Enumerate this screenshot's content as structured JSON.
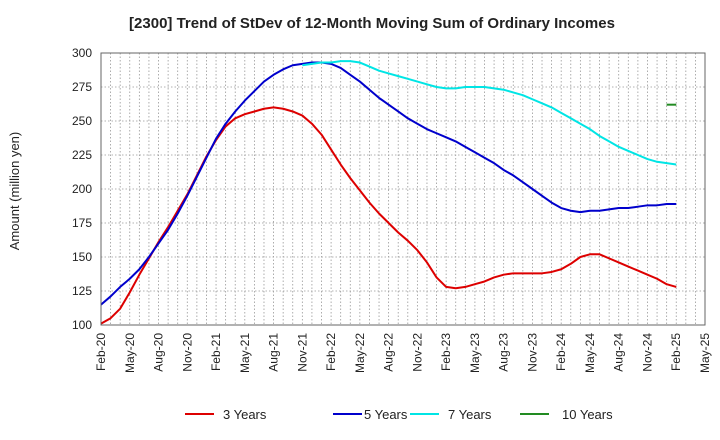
{
  "chart_data": {
    "type": "line",
    "title": "[2300]  Trend of StDev of 12-Month Moving Sum of Ordinary Incomes",
    "xlabel": "",
    "ylabel": "Amount (million yen)",
    "ylim": [
      100,
      300
    ],
    "yticks": [
      100,
      125,
      150,
      175,
      200,
      225,
      250,
      275,
      300
    ],
    "x_tick_labels": [
      "Feb-20",
      "May-20",
      "Aug-20",
      "Nov-20",
      "Feb-21",
      "May-21",
      "Aug-21",
      "Nov-21",
      "Feb-22",
      "May-22",
      "Aug-22",
      "Nov-22",
      "Feb-23",
      "May-23",
      "Aug-23",
      "Nov-23",
      "Feb-24",
      "May-24",
      "Aug-24",
      "Nov-24",
      "Feb-25",
      "May-25"
    ],
    "x_range_months": [
      0,
      63
    ],
    "grid": true,
    "legend_position": "bottom",
    "series": [
      {
        "name": "3 Years",
        "color": "#dd0000",
        "x": [
          0,
          1,
          2,
          3,
          4,
          5,
          6,
          7,
          8,
          9,
          10,
          11,
          12,
          13,
          14,
          15,
          16,
          17,
          18,
          19,
          20,
          21,
          22,
          23,
          24,
          25,
          26,
          27,
          28,
          29,
          30,
          31,
          32,
          33,
          34,
          35,
          36,
          37,
          38,
          39,
          40,
          41,
          42,
          43,
          44,
          45,
          46,
          47,
          48,
          49,
          50,
          51,
          52,
          53,
          54,
          55,
          56,
          57,
          58,
          59,
          60
        ],
        "values": [
          101,
          105,
          112,
          124,
          137,
          149,
          161,
          172,
          184,
          196,
          210,
          224,
          236,
          246,
          252,
          255,
          257,
          259,
          260,
          259,
          257,
          254,
          248,
          240,
          229,
          218,
          208,
          199,
          190,
          182,
          175,
          168,
          162,
          155,
          146,
          135,
          128,
          127,
          128,
          130,
          132,
          135,
          137,
          138,
          138,
          138,
          138,
          139,
          141,
          145,
          150,
          152,
          152,
          149,
          146,
          143,
          140,
          137,
          134,
          130,
          128
        ]
      },
      {
        "name": "5 Years",
        "color": "#0000cc",
        "x": [
          0,
          1,
          2,
          3,
          4,
          5,
          6,
          7,
          8,
          9,
          10,
          11,
          12,
          13,
          14,
          15,
          16,
          17,
          18,
          19,
          20,
          21,
          22,
          23,
          24,
          25,
          26,
          27,
          28,
          29,
          30,
          31,
          32,
          33,
          34,
          35,
          36,
          37,
          38,
          39,
          40,
          41,
          42,
          43,
          44,
          45,
          46,
          47,
          48,
          49,
          50,
          51,
          52,
          53,
          54,
          55,
          56,
          57,
          58,
          59,
          60
        ],
        "values": [
          115,
          121,
          128,
          134,
          141,
          150,
          160,
          170,
          182,
          195,
          209,
          223,
          237,
          248,
          257,
          265,
          272,
          279,
          284,
          288,
          291,
          292,
          293,
          293,
          292,
          289,
          284,
          279,
          273,
          267,
          262,
          257,
          252,
          248,
          244,
          241,
          238,
          235,
          231,
          227,
          223,
          219,
          214,
          210,
          205,
          200,
          195,
          190,
          186,
          184,
          183,
          184,
          184,
          185,
          186,
          186,
          187,
          188,
          188,
          189,
          189
        ]
      },
      {
        "name": "7 Years",
        "color": "#00e5e5",
        "x": [
          21,
          22,
          23,
          24,
          25,
          26,
          27,
          28,
          29,
          30,
          31,
          32,
          33,
          34,
          35,
          36,
          37,
          38,
          39,
          40,
          41,
          42,
          43,
          44,
          45,
          46,
          47,
          48,
          49,
          50,
          51,
          52,
          53,
          54,
          55,
          56,
          57,
          58,
          59,
          60
        ],
        "values": [
          291,
          292,
          293,
          293,
          294,
          294,
          293,
          290,
          287,
          285,
          283,
          281,
          279,
          277,
          275,
          274,
          274,
          275,
          275,
          275,
          274,
          273,
          271,
          269,
          266,
          263,
          260,
          256,
          252,
          248,
          244,
          239,
          235,
          231,
          228,
          225,
          222,
          220,
          219,
          218
        ]
      },
      {
        "name": "10 Years",
        "color": "#228b22",
        "x": [
          59,
          60
        ],
        "values": [
          262,
          262
        ]
      }
    ]
  }
}
